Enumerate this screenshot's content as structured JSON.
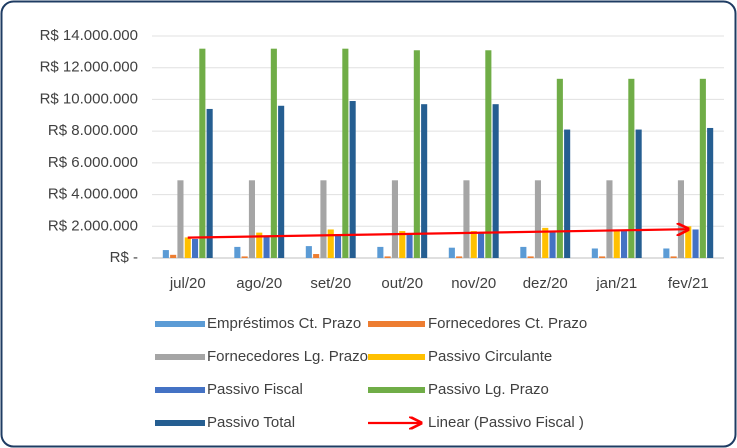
{
  "chart_data": {
    "type": "bar",
    "categories": [
      "jul/20",
      "ago/20",
      "set/20",
      "out/20",
      "nov/20",
      "dez/20",
      "jan/21",
      "fev/21"
    ],
    "series": [
      {
        "name": "Empréstimos Ct. Prazo",
        "color": "#5b9bd5",
        "values": [
          500000,
          700000,
          750000,
          700000,
          650000,
          700000,
          600000,
          600000
        ]
      },
      {
        "name": "Fornecedores Ct. Prazo",
        "color": "#ed7d31",
        "values": [
          200000,
          100000,
          250000,
          100000,
          100000,
          100000,
          100000,
          100000
        ]
      },
      {
        "name": "Fornecedores Lg. Prazo",
        "color": "#a5a5a5",
        "values": [
          4900000,
          4900000,
          4900000,
          4900000,
          4900000,
          4900000,
          4900000,
          4900000
        ]
      },
      {
        "name": "Passivo Circulante",
        "color": "#ffc000",
        "values": [
          1300000,
          1600000,
          1800000,
          1700000,
          1700000,
          1900000,
          1800000,
          2000000
        ]
      },
      {
        "name": "Passivo Fiscal",
        "color": "#4472c4",
        "values": [
          1200000,
          1400000,
          1500000,
          1500000,
          1600000,
          1700000,
          1700000,
          1800000
        ]
      },
      {
        "name": "Passivo Lg. Prazo",
        "color": "#70ad47",
        "values": [
          13200000,
          13200000,
          13200000,
          13100000,
          13100000,
          11300000,
          11300000,
          11300000
        ]
      },
      {
        "name": "Passivo Total",
        "color": "#255e91",
        "values": [
          9400000,
          9600000,
          9900000,
          9700000,
          9700000,
          8100000,
          8100000,
          8200000
        ]
      }
    ],
    "trendline": {
      "name": "Linear (Passivo Fiscal )",
      "color": "#ff0000"
    },
    "ylim": [
      0,
      14000000
    ],
    "yticks": [
      {
        "value": 0,
        "label": "R$ -"
      },
      {
        "value": 2000000,
        "label": "R$ 2.000.000"
      },
      {
        "value": 4000000,
        "label": "R$ 4.000.000"
      },
      {
        "value": 6000000,
        "label": "R$ 6.000.000"
      },
      {
        "value": 8000000,
        "label": "R$ 8.000.000"
      },
      {
        "value": 10000000,
        "label": "R$ 10.000.000"
      },
      {
        "value": 12000000,
        "label": "R$ 12.000.000"
      },
      {
        "value": 14000000,
        "label": "R$ 14.000.000"
      }
    ],
    "grid": true
  }
}
